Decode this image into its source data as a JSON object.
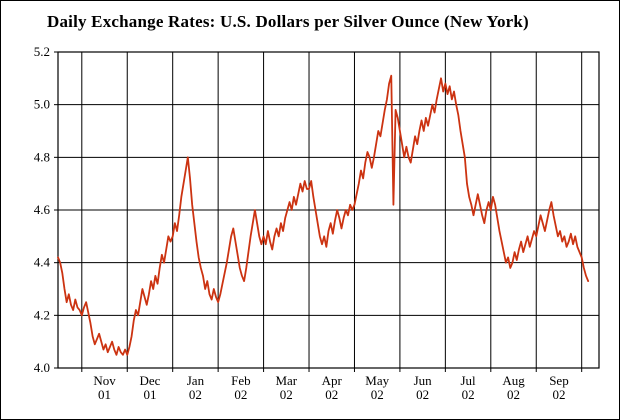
{
  "window": {
    "background": "#ffffff",
    "border_color": "#000000"
  },
  "chart_data": {
    "type": "line",
    "title": "Daily Exchange Rates: U.S. Dollars per Silver Ounce (New York)",
    "series_name": "USD per Silver Ounce",
    "line_color": "#cc3311",
    "grid": true,
    "grid_color": "#000000",
    "legend": "none",
    "ylim": [
      4.0,
      5.2
    ],
    "yticks": [
      4.0,
      4.2,
      4.4,
      4.6,
      4.8,
      5.0,
      5.2
    ],
    "ytick_labels": [
      "4.0",
      "4.2",
      "4.4",
      "4.6",
      "4.8",
      "5.0",
      "5.2"
    ],
    "x_axis": {
      "unit": "business-day",
      "total": 250,
      "month_boundaries": [
        11,
        32,
        53,
        74,
        95,
        116,
        137,
        158,
        179,
        200,
        221,
        242
      ],
      "month_labels": [
        {
          "text_top": "Nov",
          "text_bottom": "01",
          "center_day": 21.5
        },
        {
          "text_top": "Dec",
          "text_bottom": "01",
          "center_day": 42.5
        },
        {
          "text_top": "Jan",
          "text_bottom": "02",
          "center_day": 63.5
        },
        {
          "text_top": "Feb",
          "text_bottom": "02",
          "center_day": 84.5
        },
        {
          "text_top": "Mar",
          "text_bottom": "02",
          "center_day": 105.5
        },
        {
          "text_top": "Apr",
          "text_bottom": "02",
          "center_day": 126.5
        },
        {
          "text_top": "May",
          "text_bottom": "02",
          "center_day": 147.5
        },
        {
          "text_top": "Jun",
          "text_bottom": "02",
          "center_day": 168.5
        },
        {
          "text_top": "Jul",
          "text_bottom": "02",
          "center_day": 189.5
        },
        {
          "text_top": "Aug",
          "text_bottom": "02",
          "center_day": 210.5
        },
        {
          "text_top": "Sep",
          "text_bottom": "02",
          "center_day": 231.5
        }
      ]
    },
    "values": [
      4.42,
      4.4,
      4.36,
      4.3,
      4.25,
      4.28,
      4.24,
      4.22,
      4.26,
      4.23,
      4.22,
      4.2,
      4.23,
      4.25,
      4.21,
      4.17,
      4.12,
      4.09,
      4.11,
      4.13,
      4.1,
      4.07,
      4.09,
      4.06,
      4.08,
      4.1,
      4.07,
      4.05,
      4.08,
      4.06,
      4.05,
      4.07,
      4.05,
      4.08,
      4.12,
      4.18,
      4.22,
      4.2,
      4.25,
      4.3,
      4.27,
      4.24,
      4.28,
      4.33,
      4.3,
      4.35,
      4.32,
      4.38,
      4.43,
      4.4,
      4.45,
      4.5,
      4.48,
      4.5,
      4.55,
      4.52,
      4.58,
      4.65,
      4.7,
      4.75,
      4.8,
      4.72,
      4.62,
      4.55,
      4.48,
      4.42,
      4.38,
      4.35,
      4.3,
      4.33,
      4.28,
      4.26,
      4.3,
      4.27,
      4.25,
      4.28,
      4.32,
      4.36,
      4.4,
      4.45,
      4.5,
      4.53,
      4.48,
      4.43,
      4.38,
      4.35,
      4.33,
      4.38,
      4.44,
      4.5,
      4.55,
      4.6,
      4.55,
      4.5,
      4.47,
      4.5,
      4.47,
      4.52,
      4.48,
      4.45,
      4.5,
      4.53,
      4.5,
      4.55,
      4.52,
      4.57,
      4.6,
      4.63,
      4.6,
      4.65,
      4.62,
      4.66,
      4.7,
      4.67,
      4.71,
      4.68,
      4.68,
      4.71,
      4.65,
      4.6,
      4.55,
      4.5,
      4.47,
      4.5,
      4.46,
      4.52,
      4.55,
      4.51,
      4.56,
      4.6,
      4.57,
      4.53,
      4.57,
      4.6,
      4.58,
      4.62,
      4.6,
      4.62,
      4.66,
      4.7,
      4.75,
      4.72,
      4.78,
      4.82,
      4.8,
      4.76,
      4.8,
      4.85,
      4.9,
      4.88,
      4.93,
      4.98,
      5.02,
      5.08,
      5.11,
      4.62,
      4.98,
      4.95,
      4.9,
      4.85,
      4.8,
      4.84,
      4.8,
      4.78,
      4.83,
      4.88,
      4.85,
      4.9,
      4.94,
      4.9,
      4.95,
      4.92,
      4.96,
      5.0,
      4.97,
      5.02,
      5.06,
      5.1,
      5.05,
      5.08,
      5.04,
      5.07,
      5.02,
      5.05,
      5.0,
      4.96,
      4.9,
      4.85,
      4.8,
      4.7,
      4.65,
      4.62,
      4.58,
      4.62,
      4.66,
      4.62,
      4.58,
      4.55,
      4.6,
      4.63,
      4.6,
      4.65,
      4.62,
      4.57,
      4.52,
      4.48,
      4.44,
      4.4,
      4.42,
      4.38,
      4.4,
      4.44,
      4.41,
      4.45,
      4.48,
      4.44,
      4.47,
      4.5,
      4.46,
      4.49,
      4.52,
      4.5,
      4.54,
      4.58,
      4.55,
      4.52,
      4.56,
      4.6,
      4.63,
      4.58,
      4.54,
      4.5,
      4.52,
      4.48,
      4.5,
      4.46,
      4.48,
      4.51,
      4.47,
      4.5,
      4.46,
      4.44,
      4.42,
      4.38,
      4.35,
      4.33
    ]
  }
}
